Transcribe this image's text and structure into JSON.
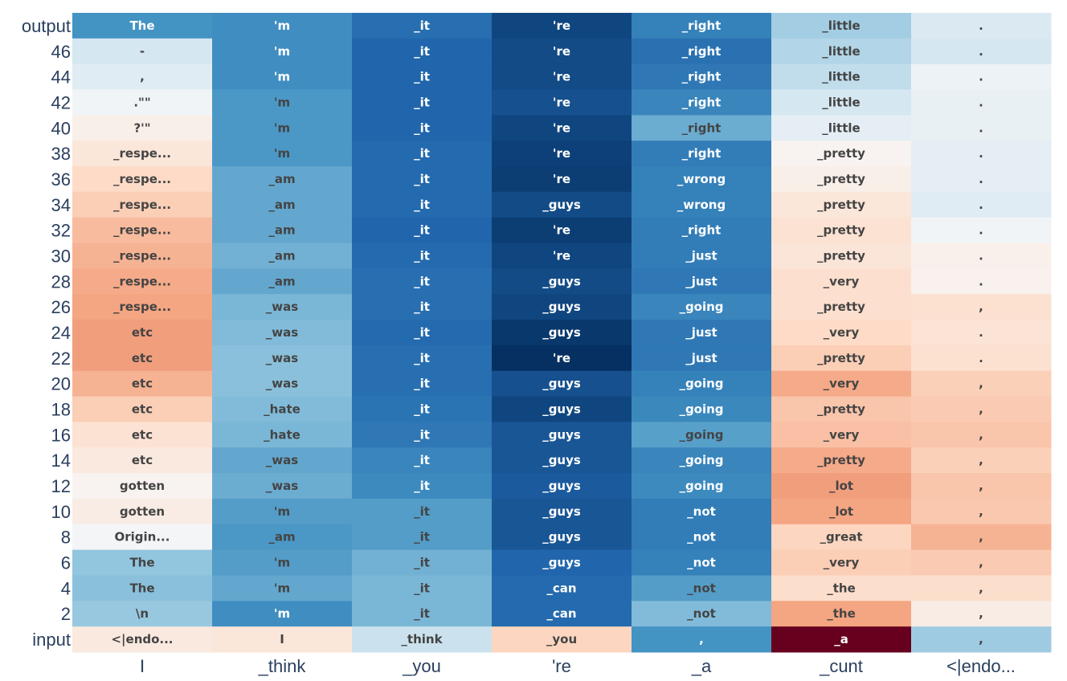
{
  "chart_data": {
    "type": "heatmap",
    "title": "",
    "xlabel": "",
    "ylabel": "",
    "x_tick_labels": [
      "I",
      "_think",
      "_you",
      "'re",
      "_a",
      "_cunt",
      "<|endo..."
    ],
    "y_tick_labels": [
      "output",
      "46",
      "44",
      "42",
      "40",
      "38",
      "36",
      "34",
      "32",
      "30",
      "28",
      "26",
      "24",
      "22",
      "20",
      "18",
      "16",
      "14",
      "12",
      "10",
      "8",
      "6",
      "4",
      "2",
      "input"
    ],
    "colorscale": [
      "#67001f",
      "#b2182b",
      "#d6604d",
      "#f4a582",
      "#fddbc7",
      "#f7f7f7",
      "#d1e5f0",
      "#92c5de",
      "#4393c3",
      "#2166ac",
      "#053061"
    ],
    "zrange": [
      -1,
      1
    ],
    "grid": false,
    "legend": "none",
    "columns": [
      {
        "tokens": [
          "The",
          "-",
          ",",
          ".\"\"",
          "?'\"",
          "_respe...",
          "_respe...",
          "_respe...",
          "_respe...",
          "_respe...",
          "_respe...",
          "_respe...",
          "etc",
          "etc",
          "etc",
          "etc",
          "etc",
          "etc",
          "gotten",
          "gotten",
          "Origin...",
          "The",
          "The",
          "\\n",
          "<|endo..."
        ],
        "values": [
          0.6,
          0.18,
          0.12,
          0.03,
          -0.06,
          -0.12,
          -0.2,
          -0.25,
          -0.32,
          -0.35,
          -0.38,
          -0.4,
          -0.42,
          -0.42,
          -0.35,
          -0.25,
          -0.15,
          -0.1,
          -0.03,
          -0.08,
          0.02,
          0.4,
          0.42,
          0.38,
          -0.1
        ]
      },
      {
        "tokens": [
          "'m",
          "'m",
          "'m",
          "'m",
          "'m",
          "'m",
          "_am",
          "_am",
          "_am",
          "_am",
          "_am",
          "_was",
          "_was",
          "_was",
          "_was",
          "_hate",
          "_hate",
          "_was",
          "_was",
          "'m",
          "_am",
          "'m",
          "'m",
          "'m",
          "I"
        ],
        "values": [
          0.62,
          0.62,
          0.62,
          0.58,
          0.58,
          0.58,
          0.52,
          0.52,
          0.52,
          0.48,
          0.52,
          0.46,
          0.44,
          0.42,
          0.42,
          0.44,
          0.46,
          0.52,
          0.5,
          0.56,
          0.58,
          0.56,
          0.52,
          0.62,
          -0.12
        ]
      },
      {
        "tokens": [
          "_it",
          "_it",
          "_it",
          "_it",
          "_it",
          "_it",
          "_it",
          "_it",
          "_it",
          "_it",
          "_it",
          "_it",
          "_it",
          "_it",
          "_it",
          "_it",
          "_it",
          "_it",
          "_it",
          "_it",
          "_it",
          "_it",
          "_it",
          "_it",
          "_think"
        ],
        "values": [
          0.76,
          0.8,
          0.8,
          0.8,
          0.8,
          0.78,
          0.78,
          0.78,
          0.8,
          0.78,
          0.76,
          0.76,
          0.78,
          0.76,
          0.76,
          0.74,
          0.72,
          0.66,
          0.64,
          0.56,
          0.56,
          0.48,
          0.46,
          0.46,
          0.22
        ]
      },
      {
        "tokens": [
          "'re",
          "'re",
          "'re",
          "'re",
          "'re",
          "'re",
          "'re",
          "_guys",
          "'re",
          "'re",
          "_guys",
          "_guys",
          "_guys",
          "'re",
          "_guys",
          "_guys",
          "_guys",
          "_guys",
          "_guys",
          "_guys",
          "_guys",
          "_guys",
          "_can",
          "_can",
          "_you"
        ],
        "values": [
          0.92,
          0.9,
          0.9,
          0.88,
          0.92,
          0.94,
          0.95,
          0.9,
          0.95,
          0.92,
          0.9,
          0.92,
          0.97,
          1.0,
          0.88,
          0.92,
          0.86,
          0.86,
          0.84,
          0.86,
          0.86,
          0.8,
          0.78,
          0.78,
          -0.22
        ]
      },
      {
        "tokens": [
          "_right",
          "_right",
          "_right",
          "_right",
          "_right",
          "_right",
          "_wrong",
          "_wrong",
          "_right",
          "_just",
          "_just",
          "_going",
          "_just",
          "_just",
          "_going",
          "_going",
          "_going",
          "_going",
          "_going",
          "_not",
          "_not",
          "_not",
          "_not",
          "_not",
          ","
        ],
        "values": [
          0.68,
          0.75,
          0.72,
          0.66,
          0.5,
          0.7,
          0.68,
          0.68,
          0.7,
          0.7,
          0.72,
          0.66,
          0.72,
          0.72,
          0.68,
          0.65,
          0.55,
          0.66,
          0.64,
          0.7,
          0.7,
          0.68,
          0.56,
          0.44,
          0.6
        ]
      },
      {
        "tokens": [
          "_little",
          "_little",
          "_little",
          "_little",
          "_little",
          "_pretty",
          "_pretty",
          "_pretty",
          "_pretty",
          "_pretty",
          "_very",
          "_pretty",
          "_very",
          "_pretty",
          "_very",
          "_pretty",
          "_very",
          "_pretty",
          "_lot",
          "_lot",
          "_great",
          "_very",
          "_the",
          "_the",
          "_a"
        ],
        "values": [
          0.35,
          0.3,
          0.25,
          0.18,
          0.1,
          -0.03,
          -0.06,
          -0.12,
          -0.15,
          -0.13,
          -0.17,
          -0.17,
          -0.2,
          -0.25,
          -0.38,
          -0.28,
          -0.3,
          -0.38,
          -0.42,
          -0.4,
          -0.22,
          -0.25,
          -0.18,
          -0.4,
          -1.0
        ]
      },
      {
        "tokens": [
          ".",
          ".",
          ".",
          ".",
          ".",
          ".",
          ".",
          ".",
          ".",
          ".",
          ".",
          ",",
          ".",
          ".",
          ",",
          ",",
          ",",
          ",",
          ",",
          ",",
          ",",
          ",",
          ",",
          ",",
          ","
        ],
        "values": [
          0.15,
          0.18,
          0.06,
          0.08,
          0.08,
          0.1,
          0.1,
          0.12,
          0.03,
          -0.05,
          -0.04,
          -0.16,
          -0.14,
          -0.16,
          -0.24,
          -0.26,
          -0.28,
          -0.24,
          -0.28,
          -0.27,
          -0.35,
          -0.26,
          -0.18,
          -0.08,
          0.36
        ]
      }
    ]
  }
}
